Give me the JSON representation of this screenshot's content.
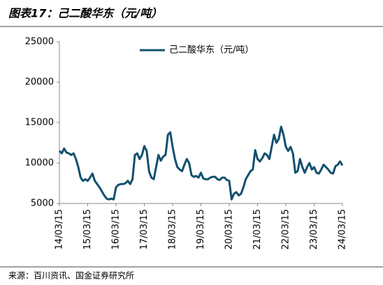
{
  "chart_data": {
    "type": "line",
    "title": "图表17：己二酸华东（元/吨）",
    "source": "来源：百川资讯、国金证券研究所",
    "categories": [
      "14/03/15",
      null,
      null,
      null,
      null,
      null,
      null,
      null,
      null,
      null,
      null,
      null,
      "15/03/15",
      null,
      null,
      null,
      null,
      null,
      null,
      null,
      null,
      null,
      null,
      null,
      "16/03/15",
      null,
      null,
      null,
      null,
      null,
      null,
      null,
      null,
      null,
      null,
      null,
      "17/03/15",
      null,
      null,
      null,
      null,
      null,
      null,
      null,
      null,
      null,
      null,
      null,
      "18/03/15",
      null,
      null,
      null,
      null,
      null,
      null,
      null,
      null,
      null,
      null,
      null,
      "19/03/15",
      null,
      null,
      null,
      null,
      null,
      null,
      null,
      null,
      null,
      null,
      null,
      "20/03/15",
      null,
      null,
      null,
      null,
      null,
      null,
      null,
      null,
      null,
      null,
      null,
      "21/03/15",
      null,
      null,
      null,
      null,
      null,
      null,
      null,
      null,
      null,
      null,
      null,
      "22/03/15",
      null,
      null,
      null,
      null,
      null,
      null,
      null,
      null,
      null,
      null,
      null,
      "23/03/15",
      null,
      null,
      null,
      null,
      null,
      null,
      null,
      null,
      null,
      null,
      null,
      "24/03/15"
    ],
    "series": [
      {
        "name": "己二酸华东（元/吨）",
        "color": "#12506e",
        "values": [
          11500,
          11200,
          11800,
          11300,
          11200,
          11000,
          11200,
          10500,
          9500,
          8200,
          7800,
          8000,
          7800,
          8200,
          8700,
          7800,
          7400,
          7000,
          6500,
          6000,
          5600,
          5500,
          5600,
          5500,
          7000,
          7300,
          7400,
          7400,
          7500,
          7800,
          7400,
          8000,
          11000,
          11200,
          10500,
          11000,
          12100,
          11500,
          9000,
          8200,
          8000,
          9500,
          11000,
          10300,
          10800,
          11000,
          13500,
          13800,
          12000,
          10500,
          9500,
          9200,
          9000,
          9800,
          10500,
          10000,
          8500,
          8300,
          8400,
          8200,
          8800,
          8100,
          8000,
          8000,
          8200,
          8300,
          8300,
          8000,
          7900,
          8200,
          8200,
          7900,
          7800,
          5500,
          6200,
          6400,
          6000,
          6200,
          7000,
          8000,
          8500,
          9000,
          9200,
          11600,
          10500,
          10200,
          10600,
          11200,
          11000,
          10500,
          12000,
          13500,
          12500,
          13000,
          14500,
          13500,
          12000,
          11500,
          12000,
          11200,
          8800,
          9000,
          10500,
          9500,
          8800,
          9500,
          10000,
          9200,
          9500,
          8800,
          8700,
          9200,
          9800,
          9500,
          9200,
          8800,
          8700,
          9600,
          9800,
          10200,
          9700
        ]
      }
    ],
    "ylim": [
      5000,
      25000
    ],
    "yticks": [
      5000,
      10000,
      15000,
      20000,
      25000
    ],
    "legend": "top"
  }
}
